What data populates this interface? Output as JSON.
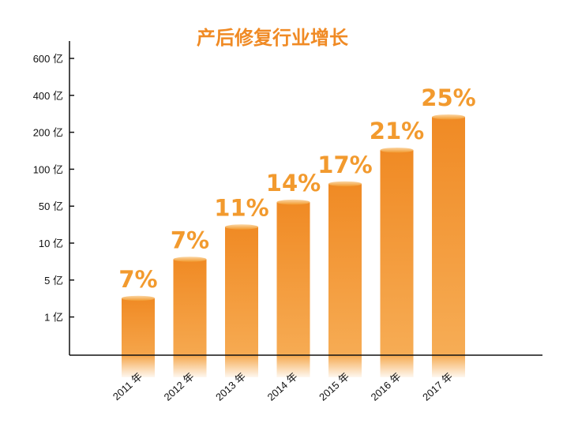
{
  "chart_data": {
    "type": "bar",
    "title": "产后修复行业增长",
    "xlabel": "",
    "ylabel": "",
    "yticks": [
      "600 亿",
      "400 亿",
      "200 亿",
      "100 亿",
      "50 亿",
      "10 亿",
      "5 亿",
      "1 亿"
    ],
    "categories": [
      "2011 年",
      "2012 年",
      "2013 年",
      "2014 年",
      "2015 年",
      "2016 年",
      "2017 年"
    ],
    "labels": [
      "7%",
      "7%",
      "11%",
      "14%",
      "17%",
      "21%",
      "25%"
    ],
    "bar_levels": [
      0.3,
      0.5,
      0.666,
      0.793,
      0.887,
      1.06,
      1.23
    ],
    "scale": "categorical (non-linear tick spacing)",
    "grid": false,
    "legend": "none",
    "colors": {
      "title": "#F08A24",
      "label": "#F29A2E",
      "bar_top": "#F08A24",
      "bar_bottom": "#F7B05A",
      "axis": "#111111"
    }
  }
}
